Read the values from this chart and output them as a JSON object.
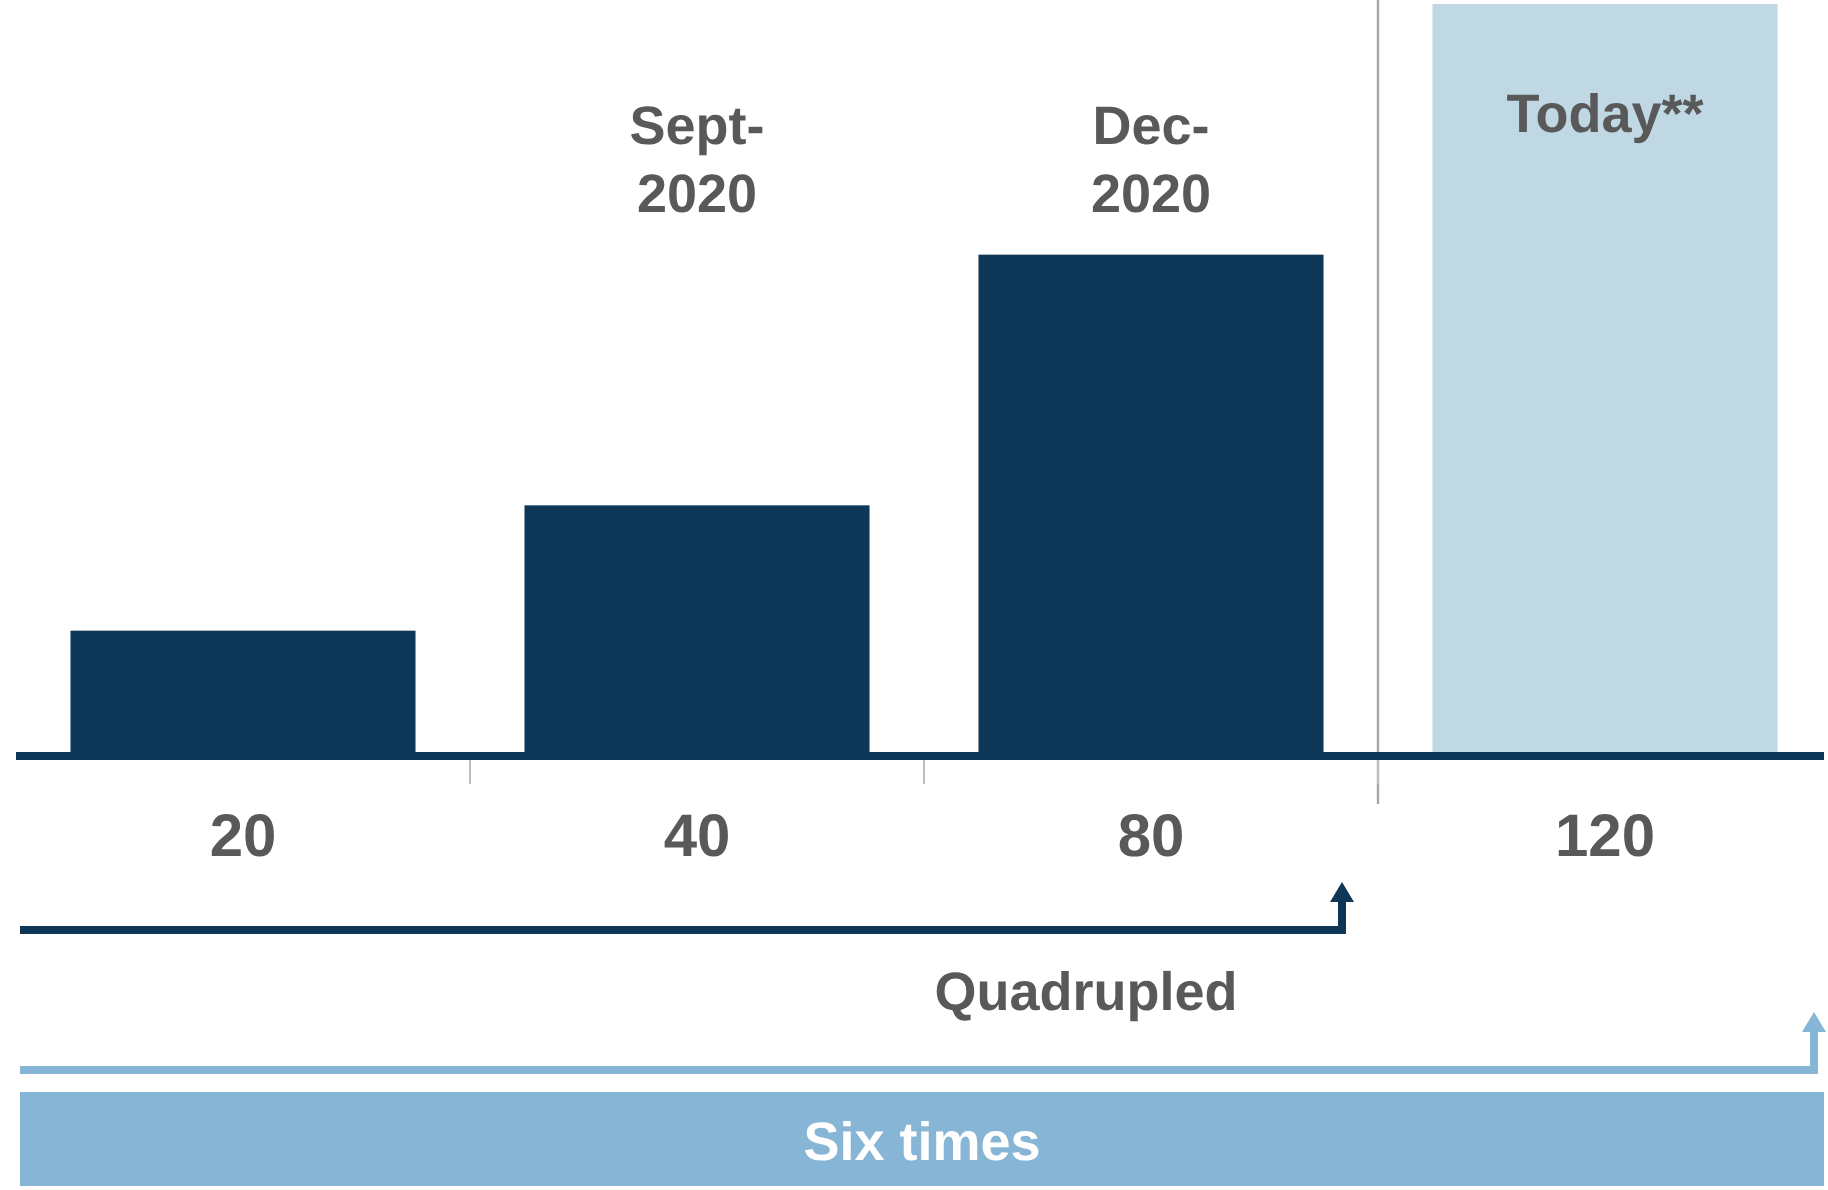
{
  "chart_data": {
    "type": "bar",
    "categories": [
      null,
      "Sept-2020",
      "Dec-2020",
      "Today**"
    ],
    "values": [
      20,
      40,
      80,
      120
    ],
    "colors": [
      "#0e3656",
      "#0e3656",
      "#0e3656",
      "#c0d8e4"
    ],
    "data_labels": true,
    "annotations": [
      "Quadrupled",
      "Six times"
    ]
  }
}
